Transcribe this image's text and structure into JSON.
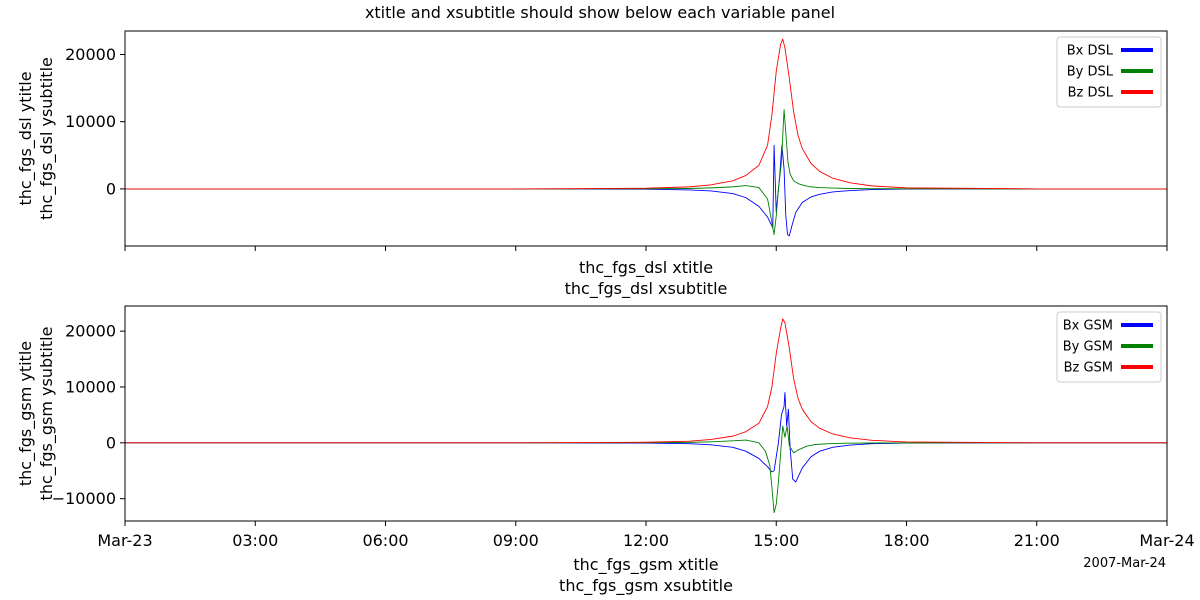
{
  "figure": {
    "title": "xtitle and xsubtitle should show below each variable panel",
    "date_label": "2007-Mar-24"
  },
  "chart_data": [
    {
      "type": "line",
      "title": "",
      "ylabel": "thc_fgs_dsl ytitle",
      "ysublabel": "thc_fgs_dsl ysubtitle",
      "xlabel": "thc_fgs_dsl xtitle",
      "xsublabel": "thc_fgs_dsl xsubtitle",
      "xlim": [
        0,
        24
      ],
      "ylim": [
        -8500,
        23500
      ],
      "y_ticks": [
        0,
        10000,
        20000
      ],
      "y_tick_labels": [
        "0",
        "10000",
        "20000"
      ],
      "x_ticks": [
        0,
        3,
        6,
        9,
        12,
        15,
        18,
        21,
        24
      ],
      "x_tick_labels": [],
      "legend_placement": "top-right",
      "grid": false,
      "series": [
        {
          "name": "Bx DSL",
          "color": "#0000ff",
          "x": [
            0,
            3,
            6,
            9,
            12,
            13,
            13.5,
            14,
            14.3,
            14.6,
            14.8,
            14.92,
            14.95,
            15.0,
            15.08,
            15.13,
            15.18,
            15.22,
            15.26,
            15.3,
            15.36,
            15.45,
            15.6,
            15.8,
            16.0,
            16.3,
            16.7,
            17.2,
            18,
            21,
            24
          ],
          "values": [
            0,
            0,
            0,
            0,
            -50,
            -150,
            -300,
            -700,
            -1300,
            -2600,
            -4200,
            -5800,
            6500,
            -3500,
            2000,
            6500,
            3000,
            -4000,
            -6800,
            -7000,
            -5500,
            -3500,
            -2000,
            -1200,
            -800,
            -450,
            -250,
            -100,
            -30,
            0,
            0
          ]
        },
        {
          "name": "By DSL",
          "color": "#008000",
          "x": [
            0,
            3,
            6,
            9,
            12,
            13,
            13.5,
            14,
            14.3,
            14.6,
            14.8,
            14.9,
            14.95,
            15.0,
            15.05,
            15.12,
            15.18,
            15.23,
            15.27,
            15.32,
            15.4,
            15.5,
            15.65,
            15.8,
            16.0,
            16.3,
            16.7,
            17.2,
            18,
            21,
            24
          ],
          "values": [
            0,
            0,
            0,
            0,
            20,
            60,
            150,
            300,
            500,
            200,
            -1500,
            -5000,
            -6800,
            -4000,
            0,
            4000,
            11800,
            7500,
            4000,
            2200,
            1200,
            800,
            500,
            300,
            200,
            120,
            60,
            30,
            10,
            0,
            0
          ]
        },
        {
          "name": "Bz DSL",
          "color": "#ff0000",
          "x": [
            0,
            3,
            6,
            9,
            12,
            13,
            13.5,
            14,
            14.3,
            14.6,
            14.8,
            14.9,
            15.0,
            15.1,
            15.15,
            15.2,
            15.3,
            15.4,
            15.5,
            15.6,
            15.8,
            16.0,
            16.3,
            16.7,
            17.2,
            18,
            21,
            24
          ],
          "values": [
            0,
            0,
            0,
            0,
            100,
            300,
            600,
            1200,
            2000,
            3500,
            6500,
            11000,
            17500,
            21500,
            22300,
            21000,
            16500,
            11500,
            8000,
            6000,
            3800,
            2600,
            1600,
            900,
            450,
            150,
            0,
            0
          ]
        }
      ]
    },
    {
      "type": "line",
      "title": "",
      "ylabel": "thc_fgs_gsm ytitle",
      "ysublabel": "thc_fgs_gsm ysubtitle",
      "xlabel": "thc_fgs_gsm xtitle",
      "xsublabel": "thc_fgs_gsm xsubtitle",
      "xlim": [
        0,
        24
      ],
      "ylim": [
        -14000,
        24500
      ],
      "y_ticks": [
        -10000,
        0,
        10000,
        20000
      ],
      "y_tick_labels": [
        "−10000",
        "0",
        "10000",
        "20000"
      ],
      "x_ticks": [
        0,
        3,
        6,
        9,
        12,
        15,
        18,
        21,
        24
      ],
      "x_tick_labels": [
        "Mar-23",
        "03:00",
        "06:00",
        "09:00",
        "12:00",
        "15:00",
        "18:00",
        "21:00",
        "Mar-24"
      ],
      "legend_placement": "top-right",
      "grid": false,
      "series": [
        {
          "name": "Bx GSM",
          "color": "#0000ff",
          "x": [
            0,
            3,
            6,
            9,
            12,
            13,
            13.5,
            14,
            14.3,
            14.6,
            14.8,
            14.9,
            14.95,
            15.05,
            15.12,
            15.18,
            15.2,
            15.24,
            15.28,
            15.32,
            15.38,
            15.45,
            15.6,
            15.8,
            16.0,
            16.3,
            16.7,
            17.2,
            18,
            21,
            24
          ],
          "values": [
            0,
            0,
            0,
            0,
            -50,
            -150,
            -350,
            -800,
            -1500,
            -2800,
            -4300,
            -5200,
            -5000,
            0,
            5000,
            6500,
            9000,
            3000,
            6000,
            -1000,
            -6500,
            -7000,
            -4500,
            -2500,
            -1500,
            -800,
            -400,
            -150,
            -50,
            0,
            0
          ]
        },
        {
          "name": "By GSM",
          "color": "#008000",
          "x": [
            0,
            3,
            6,
            9,
            12,
            13,
            13.5,
            14,
            14.3,
            14.6,
            14.75,
            14.85,
            14.9,
            14.95,
            15.0,
            15.05,
            15.1,
            15.15,
            15.2,
            15.25,
            15.3,
            15.4,
            15.5,
            15.7,
            15.9,
            16.2,
            16.6,
            17.2,
            18,
            21,
            24
          ],
          "values": [
            0,
            0,
            0,
            0,
            20,
            80,
            180,
            350,
            500,
            0,
            -1500,
            -4000,
            -8000,
            -12500,
            -11000,
            -7000,
            -2000,
            3000,
            1000,
            3000,
            -500,
            -1800,
            -1300,
            -600,
            -300,
            -150,
            -70,
            -30,
            -10,
            0,
            0
          ]
        },
        {
          "name": "Bz GSM",
          "color": "#ff0000",
          "x": [
            0,
            3,
            6,
            9,
            12,
            13,
            13.5,
            14,
            14.3,
            14.6,
            14.8,
            14.9,
            15.0,
            15.1,
            15.15,
            15.2,
            15.3,
            15.4,
            15.5,
            15.6,
            15.8,
            16.0,
            16.3,
            16.7,
            17.2,
            18,
            21,
            24
          ],
          "values": [
            0,
            0,
            0,
            0,
            100,
            300,
            600,
            1200,
            2000,
            3500,
            6500,
            10000,
            16000,
            20500,
            22200,
            21500,
            17000,
            11500,
            8000,
            6000,
            3800,
            2600,
            1600,
            900,
            450,
            150,
            0,
            0
          ]
        }
      ]
    }
  ]
}
